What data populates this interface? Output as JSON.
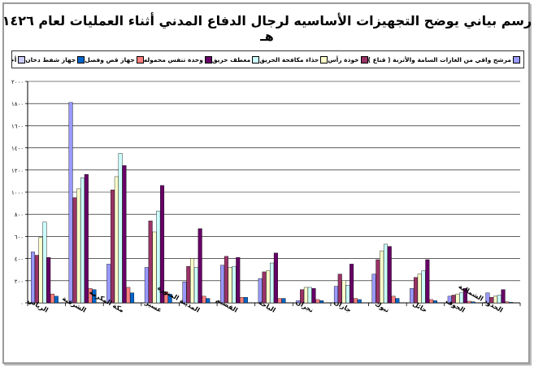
{
  "title": "رسم بياني يوضح التجهيزات الأساسيه لرجال الدفاع المدني أثناء العمليات لعام ١٤٢٦ هـ",
  "chart_data": {
    "type": "bar",
    "title": "رسم بياني يوضح التجهيزات الأساسيه لرجال الدفاع المدني أثناء العمليات لعام ١٤٢٦ هـ",
    "xlabel": "",
    "ylabel": "",
    "ylim": [
      0,
      2000
    ],
    "yticks": [
      0,
      200,
      400,
      600,
      800,
      1000,
      1200,
      1400,
      1600,
      1800,
      2000
    ],
    "ytick_labels": [
      "٠",
      "٢٠٠",
      "٤٠٠",
      "٦٠٠",
      "٨٠٠",
      "١٠٠٠",
      "١٢٠٠",
      "١٤٠٠",
      "١٦٠٠",
      "١٨٠٠",
      "٢٠٠٠"
    ],
    "grid": true,
    "legend_position": "top",
    "categories": [
      "الرياض",
      "الشرقية",
      "مكة المكرمة",
      "عسير",
      "المدينة المنورة",
      "القصيم",
      "الباحة",
      "نجران",
      "جازان",
      "تبوك",
      "حائل",
      "الجوف",
      "الحدود الشمالية"
    ],
    "series": [
      {
        "name": "مرشح واقي من الغازات السامة والأتربة ( قناع )",
        "color": "#9999ff",
        "values": [
          460,
          1810,
          350,
          320,
          190,
          340,
          220,
          20,
          150,
          260,
          130,
          60,
          90
        ]
      },
      {
        "name": "خوذة رأس",
        "color": "#993366",
        "values": [
          430,
          950,
          1020,
          740,
          330,
          420,
          280,
          120,
          260,
          390,
          230,
          70,
          50
        ]
      },
      {
        "name": "حذاء مكافحة الحريق",
        "color": "#ffffcc",
        "values": [
          590,
          1030,
          1140,
          640,
          400,
          320,
          290,
          140,
          200,
          470,
          260,
          80,
          60
        ]
      },
      {
        "name": "معطف حريق",
        "color": "#ccffff",
        "values": [
          730,
          1130,
          1350,
          830,
          320,
          330,
          360,
          140,
          160,
          530,
          290,
          90,
          70
        ]
      },
      {
        "name": "وحدة تنفس محموله",
        "color": "#660066",
        "values": [
          410,
          1160,
          1240,
          1060,
          670,
          410,
          450,
          130,
          350,
          510,
          390,
          130,
          120
        ]
      },
      {
        "name": "جهاز قص وفصل",
        "color": "#ff8080",
        "values": [
          80,
          130,
          140,
          100,
          60,
          50,
          40,
          30,
          40,
          60,
          30,
          15,
          10
        ]
      },
      {
        "name": "جهاز شفط دخان",
        "color": "#0066cc",
        "values": [
          60,
          120,
          90,
          80,
          40,
          50,
          40,
          20,
          30,
          40,
          20,
          10,
          5
        ]
      },
      {
        "name": "أخرى",
        "color": "#ccccff",
        "values": [
          0,
          0,
          0,
          0,
          0,
          0,
          0,
          0,
          0,
          0,
          0,
          0,
          0
        ]
      }
    ]
  }
}
